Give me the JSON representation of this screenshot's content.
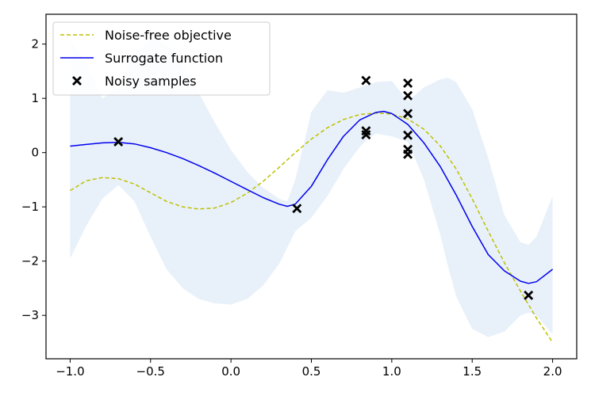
{
  "chart_data": {
    "type": "line",
    "title": "",
    "xlabel": "",
    "ylabel": "",
    "xlim": [
      -1.15,
      2.15
    ],
    "ylim": [
      -3.8,
      2.55
    ],
    "xticks": [
      -1.0,
      -0.5,
      0.0,
      0.5,
      1.0,
      1.5,
      2.0
    ],
    "xtick_labels": [
      "−1.0",
      "−0.5",
      "0.0",
      "0.5",
      "1.0",
      "1.5",
      "2.0"
    ],
    "yticks": [
      2,
      1,
      0,
      -1,
      -2,
      -3
    ],
    "ytick_labels": [
      "2",
      "1",
      "0",
      "−1",
      "−2",
      "−3"
    ],
    "grid": false,
    "legend_position": "top-left",
    "legend": [
      "Noise-free objective",
      "Surrogate function",
      "Noisy samples"
    ],
    "series": [
      {
        "name": "Noise-free objective",
        "style": "dashed",
        "color": "#bfbf00",
        "x": [
          -1.0,
          -0.9,
          -0.8,
          -0.7,
          -0.6,
          -0.5,
          -0.4,
          -0.3,
          -0.2,
          -0.1,
          0.0,
          0.1,
          0.2,
          0.3,
          0.4,
          0.5,
          0.6,
          0.7,
          0.8,
          0.9,
          1.0,
          1.1,
          1.2,
          1.3,
          1.4,
          1.5,
          1.6,
          1.7,
          1.8,
          1.9,
          2.0
        ],
        "y": [
          -0.7,
          -0.52,
          -0.46,
          -0.48,
          -0.58,
          -0.74,
          -0.9,
          -1.0,
          -1.04,
          -1.02,
          -0.92,
          -0.75,
          -0.53,
          -0.27,
          0.0,
          0.25,
          0.46,
          0.61,
          0.7,
          0.73,
          0.71,
          0.62,
          0.43,
          0.13,
          -0.3,
          -0.85,
          -1.45,
          -2.03,
          -2.55,
          -3.05,
          -3.5
        ]
      },
      {
        "name": "Surrogate function",
        "style": "solid",
        "color": "#0000ee",
        "x": [
          -1.0,
          -0.9,
          -0.8,
          -0.7,
          -0.6,
          -0.5,
          -0.4,
          -0.3,
          -0.2,
          -0.1,
          0.0,
          0.1,
          0.2,
          0.3,
          0.35,
          0.4,
          0.5,
          0.6,
          0.7,
          0.8,
          0.9,
          0.95,
          1.0,
          1.1,
          1.2,
          1.3,
          1.4,
          1.5,
          1.6,
          1.7,
          1.8,
          1.85,
          1.9,
          2.0
        ],
        "y": [
          0.12,
          0.15,
          0.18,
          0.19,
          0.16,
          0.09,
          0.0,
          -0.11,
          -0.24,
          -0.38,
          -0.53,
          -0.68,
          -0.83,
          -0.95,
          -0.99,
          -0.95,
          -0.62,
          -0.13,
          0.3,
          0.6,
          0.74,
          0.76,
          0.72,
          0.52,
          0.18,
          -0.25,
          -0.78,
          -1.36,
          -1.88,
          -2.18,
          -2.37,
          -2.41,
          -2.38,
          -2.15
        ]
      },
      {
        "name": "Confidence band",
        "style": "fill",
        "color": "#e6eff8",
        "x": [
          -1.0,
          -0.9,
          -0.8,
          -0.7,
          -0.6,
          -0.5,
          -0.4,
          -0.3,
          -0.2,
          -0.1,
          0.0,
          0.1,
          0.2,
          0.3,
          0.35,
          0.4,
          0.5,
          0.6,
          0.7,
          0.8,
          0.85,
          0.9,
          1.0,
          1.1,
          1.2,
          1.3,
          1.35,
          1.4,
          1.5,
          1.6,
          1.7,
          1.8,
          1.85,
          1.9,
          2.0
        ],
        "upper": [
          2.1,
          1.65,
          1.0,
          1.2,
          1.8,
          2.1,
          2.0,
          1.6,
          1.1,
          0.55,
          0.05,
          -0.35,
          -0.65,
          -0.85,
          -0.9,
          -0.5,
          0.75,
          1.15,
          1.1,
          1.2,
          1.25,
          1.3,
          1.32,
          0.95,
          1.2,
          1.35,
          1.38,
          1.3,
          0.8,
          -0.1,
          -1.15,
          -1.65,
          -1.7,
          -1.55,
          -0.8
        ],
        "lower": [
          -1.95,
          -1.35,
          -0.85,
          -0.6,
          -0.9,
          -1.55,
          -2.15,
          -2.5,
          -2.7,
          -2.78,
          -2.8,
          -2.7,
          -2.45,
          -2.05,
          -1.75,
          -1.45,
          -1.2,
          -0.8,
          -0.3,
          0.1,
          0.25,
          0.35,
          0.3,
          0.2,
          -0.5,
          -1.5,
          -2.1,
          -2.65,
          -3.25,
          -3.4,
          -3.3,
          -3.0,
          -2.95,
          -3.0,
          -3.35
        ]
      },
      {
        "name": "Noisy samples",
        "style": "markers",
        "color": "#000000",
        "points": [
          [
            -0.7,
            0.2
          ],
          [
            0.41,
            -1.03
          ],
          [
            0.84,
            1.33
          ],
          [
            0.84,
            0.4
          ],
          [
            0.84,
            0.33
          ],
          [
            1.1,
            1.28
          ],
          [
            1.1,
            1.05
          ],
          [
            1.1,
            0.72
          ],
          [
            1.1,
            0.32
          ],
          [
            1.1,
            0.06
          ],
          [
            1.1,
            -0.03
          ],
          [
            1.85,
            -2.63
          ]
        ]
      }
    ]
  }
}
